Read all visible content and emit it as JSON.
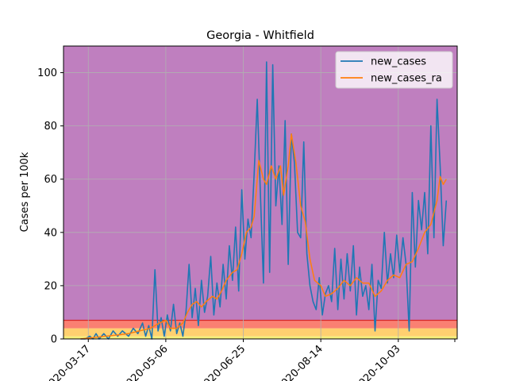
{
  "chart_data": {
    "type": "line",
    "title": "Georgia - Whitfield",
    "xlabel": "",
    "ylabel": "Cases per 100k",
    "x_start": "2020-03-01",
    "x_end": "2020-11-10",
    "x_tick_labels": [
      "2020-03-17",
      "2020-05-06",
      "2020-06-25",
      "2020-08-14",
      "2020-10-03"
    ],
    "ylim": [
      0,
      110
    ],
    "y_ticks": [
      0,
      20,
      40,
      60,
      80,
      100
    ],
    "grid": true,
    "legend_position": "top-right",
    "bands": [
      {
        "from": 0,
        "to": 1,
        "color": "#f5f07a"
      },
      {
        "from": 1,
        "to": 4,
        "color": "#ffd070"
      },
      {
        "from": 4,
        "to": 7,
        "color": "#fa8072"
      },
      {
        "from": 7,
        "to": 110,
        "color": "#bf7fbf"
      }
    ],
    "band_line": {
      "value": 7,
      "color": "#d62728"
    },
    "series": [
      {
        "name": "new_cases",
        "color": "#1f77b4",
        "points": [
          [
            "2020-03-12",
            0
          ],
          [
            "2020-03-15",
            0
          ],
          [
            "2020-03-18",
            1
          ],
          [
            "2020-03-20",
            0
          ],
          [
            "2020-03-22",
            2
          ],
          [
            "2020-03-24",
            0
          ],
          [
            "2020-03-27",
            2
          ],
          [
            "2020-03-30",
            0
          ],
          [
            "2020-04-02",
            3
          ],
          [
            "2020-04-05",
            1
          ],
          [
            "2020-04-08",
            3
          ],
          [
            "2020-04-12",
            1
          ],
          [
            "2020-04-15",
            4
          ],
          [
            "2020-04-18",
            2
          ],
          [
            "2020-04-21",
            6
          ],
          [
            "2020-04-23",
            1
          ],
          [
            "2020-04-25",
            5
          ],
          [
            "2020-04-27",
            0
          ],
          [
            "2020-04-29",
            26
          ],
          [
            "2020-05-01",
            3
          ],
          [
            "2020-05-03",
            8
          ],
          [
            "2020-05-05",
            1
          ],
          [
            "2020-05-07",
            9
          ],
          [
            "2020-05-09",
            3
          ],
          [
            "2020-05-11",
            13
          ],
          [
            "2020-05-13",
            2
          ],
          [
            "2020-05-15",
            6
          ],
          [
            "2020-05-17",
            1
          ],
          [
            "2020-05-19",
            10
          ],
          [
            "2020-05-21",
            28
          ],
          [
            "2020-05-23",
            8
          ],
          [
            "2020-05-25",
            19
          ],
          [
            "2020-05-27",
            5
          ],
          [
            "2020-05-29",
            22
          ],
          [
            "2020-05-31",
            10
          ],
          [
            "2020-06-02",
            16
          ],
          [
            "2020-06-04",
            31
          ],
          [
            "2020-06-06",
            9
          ],
          [
            "2020-06-08",
            21
          ],
          [
            "2020-06-10",
            12
          ],
          [
            "2020-06-12",
            28
          ],
          [
            "2020-06-14",
            15
          ],
          [
            "2020-06-16",
            35
          ],
          [
            "2020-06-18",
            22
          ],
          [
            "2020-06-20",
            42
          ],
          [
            "2020-06-22",
            18
          ],
          [
            "2020-06-24",
            56
          ],
          [
            "2020-06-26",
            30
          ],
          [
            "2020-06-28",
            45
          ],
          [
            "2020-06-30",
            38
          ],
          [
            "2020-07-02",
            62
          ],
          [
            "2020-07-04",
            90
          ],
          [
            "2020-07-06",
            55
          ],
          [
            "2020-07-08",
            21
          ],
          [
            "2020-07-10",
            104
          ],
          [
            "2020-07-12",
            25
          ],
          [
            "2020-07-14",
            103
          ],
          [
            "2020-07-16",
            50
          ],
          [
            "2020-07-18",
            65
          ],
          [
            "2020-07-20",
            43
          ],
          [
            "2020-07-22",
            82
          ],
          [
            "2020-07-24",
            28
          ],
          [
            "2020-07-26",
            77
          ],
          [
            "2020-07-28",
            66
          ],
          [
            "2020-07-30",
            40
          ],
          [
            "2020-08-01",
            38
          ],
          [
            "2020-08-03",
            74
          ],
          [
            "2020-08-05",
            32
          ],
          [
            "2020-08-07",
            20
          ],
          [
            "2020-08-09",
            14
          ],
          [
            "2020-08-11",
            11
          ],
          [
            "2020-08-13",
            23
          ],
          [
            "2020-08-15",
            9
          ],
          [
            "2020-08-17",
            17
          ],
          [
            "2020-08-19",
            20
          ],
          [
            "2020-08-21",
            14
          ],
          [
            "2020-08-23",
            34
          ],
          [
            "2020-08-25",
            11
          ],
          [
            "2020-08-27",
            30
          ],
          [
            "2020-08-29",
            15
          ],
          [
            "2020-08-31",
            32
          ],
          [
            "2020-09-02",
            18
          ],
          [
            "2020-09-04",
            35
          ],
          [
            "2020-09-06",
            9
          ],
          [
            "2020-09-08",
            27
          ],
          [
            "2020-09-10",
            16
          ],
          [
            "2020-09-12",
            20
          ],
          [
            "2020-09-14",
            11
          ],
          [
            "2020-09-16",
            28
          ],
          [
            "2020-09-18",
            3
          ],
          [
            "2020-09-20",
            22
          ],
          [
            "2020-09-22",
            19
          ],
          [
            "2020-09-24",
            40
          ],
          [
            "2020-09-26",
            21
          ],
          [
            "2020-09-28",
            32
          ],
          [
            "2020-09-30",
            23
          ],
          [
            "2020-10-02",
            39
          ],
          [
            "2020-10-04",
            25
          ],
          [
            "2020-10-06",
            38
          ],
          [
            "2020-10-08",
            28
          ],
          [
            "2020-10-10",
            3
          ],
          [
            "2020-10-12",
            55
          ],
          [
            "2020-10-14",
            27
          ],
          [
            "2020-10-16",
            52
          ],
          [
            "2020-10-18",
            41
          ],
          [
            "2020-10-20",
            55
          ],
          [
            "2020-10-22",
            32
          ],
          [
            "2020-10-24",
            80
          ],
          [
            "2020-10-26",
            38
          ],
          [
            "2020-10-28",
            90
          ],
          [
            "2020-10-30",
            65
          ],
          [
            "2020-11-01",
            35
          ],
          [
            "2020-11-03",
            52
          ]
        ]
      },
      {
        "name": "new_cases_ra",
        "color": "#ff7f0e",
        "points": [
          [
            "2020-03-12",
            0
          ],
          [
            "2020-03-20",
            0.5
          ],
          [
            "2020-03-28",
            1
          ],
          [
            "2020-04-05",
            1.5
          ],
          [
            "2020-04-12",
            2
          ],
          [
            "2020-04-19",
            3
          ],
          [
            "2020-04-26",
            4
          ],
          [
            "2020-05-02",
            6
          ],
          [
            "2020-05-06",
            7
          ],
          [
            "2020-05-09",
            4
          ],
          [
            "2020-05-13",
            4
          ],
          [
            "2020-05-17",
            6
          ],
          [
            "2020-05-20",
            10
          ],
          [
            "2020-05-23",
            13
          ],
          [
            "2020-05-26",
            14
          ],
          [
            "2020-05-29",
            12
          ],
          [
            "2020-06-01",
            14
          ],
          [
            "2020-06-05",
            16
          ],
          [
            "2020-06-08",
            15
          ],
          [
            "2020-06-11",
            18
          ],
          [
            "2020-06-14",
            22
          ],
          [
            "2020-06-18",
            25
          ],
          [
            "2020-06-21",
            26
          ],
          [
            "2020-06-24",
            32
          ],
          [
            "2020-06-27",
            40
          ],
          [
            "2020-06-30",
            42
          ],
          [
            "2020-07-02",
            46
          ],
          [
            "2020-07-05",
            67
          ],
          [
            "2020-07-08",
            60
          ],
          [
            "2020-07-10",
            58
          ],
          [
            "2020-07-13",
            65
          ],
          [
            "2020-07-16",
            60
          ],
          [
            "2020-07-19",
            65
          ],
          [
            "2020-07-21",
            54
          ],
          [
            "2020-07-24",
            65
          ],
          [
            "2020-07-26",
            77
          ],
          [
            "2020-07-29",
            66
          ],
          [
            "2020-08-01",
            50
          ],
          [
            "2020-08-04",
            44
          ],
          [
            "2020-08-07",
            30
          ],
          [
            "2020-08-10",
            22
          ],
          [
            "2020-08-14",
            20
          ],
          [
            "2020-08-17",
            16
          ],
          [
            "2020-08-21",
            17
          ],
          [
            "2020-08-25",
            19
          ],
          [
            "2020-08-29",
            22
          ],
          [
            "2020-09-02",
            20
          ],
          [
            "2020-09-06",
            23
          ],
          [
            "2020-09-10",
            21
          ],
          [
            "2020-09-14",
            21
          ],
          [
            "2020-09-18",
            16
          ],
          [
            "2020-09-22",
            18
          ],
          [
            "2020-09-26",
            22
          ],
          [
            "2020-09-30",
            24
          ],
          [
            "2020-10-04",
            23
          ],
          [
            "2020-10-08",
            28
          ],
          [
            "2020-10-12",
            29
          ],
          [
            "2020-10-16",
            34
          ],
          [
            "2020-10-20",
            40
          ],
          [
            "2020-10-24",
            43
          ],
          [
            "2020-10-28",
            52
          ],
          [
            "2020-10-30",
            61
          ],
          [
            "2020-11-01",
            58
          ],
          [
            "2020-11-03",
            60
          ]
        ]
      }
    ]
  }
}
